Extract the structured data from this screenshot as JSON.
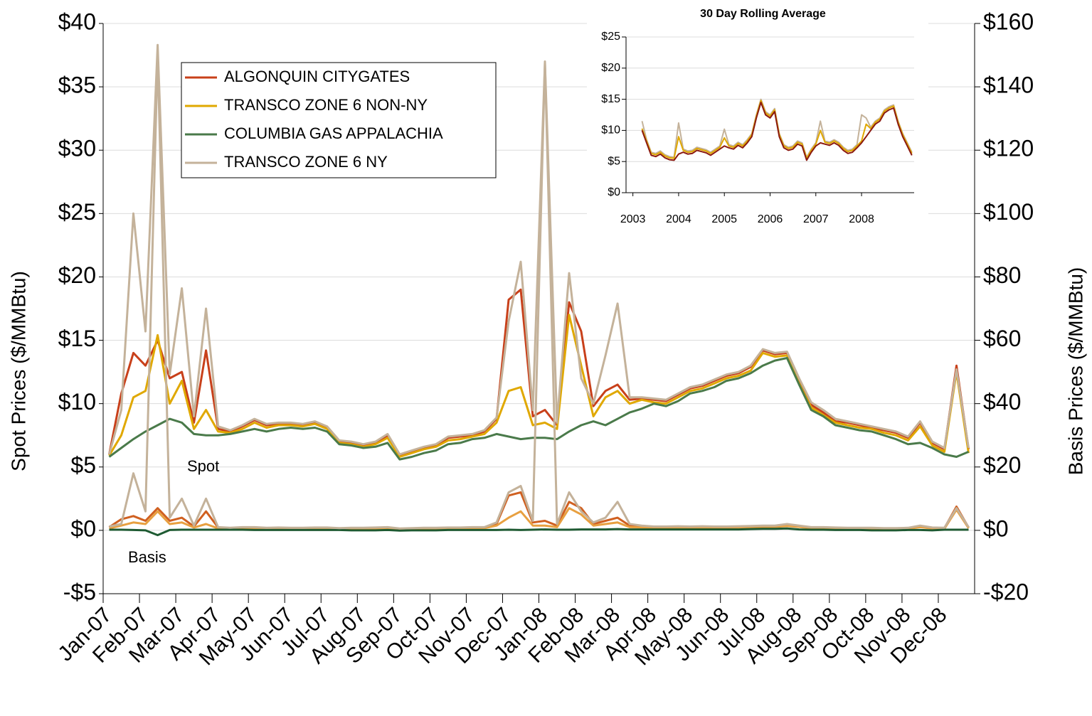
{
  "chart_data": [
    {
      "type": "line",
      "y_label": "Spot Prices ($/MMBtu)",
      "y2_label": "Basis Prices ($/MMBtu)",
      "annotations": [
        "Spot",
        "Basis"
      ],
      "grid": true,
      "legend": "upper-left",
      "categories": [
        "Jan-07",
        null,
        null,
        "Feb-07",
        null,
        null,
        "Mar-07",
        null,
        null,
        "Apr-07",
        null,
        null,
        "May-07",
        null,
        null,
        "Jun-07",
        null,
        null,
        "Jul-07",
        null,
        null,
        "Aug-07",
        null,
        null,
        "Sep-07",
        null,
        null,
        "Oct-07",
        null,
        null,
        "Nov-07",
        null,
        null,
        "Dec-07",
        null,
        null,
        "Jan-08",
        null,
        null,
        "Feb-08",
        null,
        null,
        "Mar-08",
        null,
        null,
        "Apr-08",
        null,
        null,
        "May-08",
        null,
        null,
        "Jun-08",
        null,
        null,
        "Jul-08",
        null,
        null,
        "Aug-08",
        null,
        null,
        "Sep-08",
        null,
        null,
        "Oct-08",
        null,
        null,
        "Nov-08",
        null,
        null,
        "Dec-08",
        null,
        null
      ],
      "ylim": [
        -5,
        40
      ],
      "yticks": [
        {
          "value": -5,
          "label": "-$5"
        },
        {
          "value": 0,
          "label": "$0"
        },
        {
          "value": 5,
          "label": "$5"
        },
        {
          "value": 10,
          "label": "$10"
        },
        {
          "value": 15,
          "label": "$15"
        },
        {
          "value": 20,
          "label": "$20"
        },
        {
          "value": 25,
          "label": "$25"
        },
        {
          "value": 30,
          "label": "$30"
        },
        {
          "value": 35,
          "label": "$35"
        },
        {
          "value": 40,
          "label": "$40"
        }
      ],
      "y2lim": [
        -20,
        160
      ],
      "y2ticks": [
        {
          "value": -20,
          "label": "-$20"
        },
        {
          "value": 0,
          "label": "$0"
        },
        {
          "value": 20,
          "label": "$20"
        },
        {
          "value": 40,
          "label": "$40"
        },
        {
          "value": 60,
          "label": "$60"
        },
        {
          "value": 80,
          "label": "$80"
        },
        {
          "value": 100,
          "label": "$100"
        },
        {
          "value": 120,
          "label": "$120"
        },
        {
          "value": 140,
          "label": "$140"
        },
        {
          "value": 160,
          "label": "$160"
        }
      ],
      "series": [
        {
          "name": "ALGONQUIN CITYGATES",
          "color": "#c8401a",
          "values": [
            6.0,
            10.8,
            14.0,
            13.0,
            15.0,
            12.0,
            12.5,
            8.5,
            14.2,
            8.0,
            7.8,
            8.2,
            8.7,
            8.3,
            8.4,
            8.4,
            8.3,
            8.5,
            8.1,
            7.0,
            6.9,
            6.7,
            6.9,
            7.5,
            5.9,
            6.2,
            6.5,
            6.7,
            7.3,
            7.4,
            7.5,
            7.8,
            8.8,
            18.2,
            19.0,
            9.0,
            9.5,
            8.3,
            18.0,
            15.7,
            9.8,
            11.0,
            11.5,
            10.3,
            10.4,
            10.3,
            10.2,
            10.7,
            11.2,
            11.4,
            11.8,
            12.2,
            12.4,
            12.9,
            14.2,
            13.9,
            14.0,
            11.8,
            9.9,
            9.3,
            8.6,
            8.5,
            8.3,
            8.1,
            7.9,
            7.7,
            7.3,
            8.5,
            6.9,
            6.4,
            13.0,
            6.4
          ]
        },
        {
          "name": "TRANSCO ZONE 6 NON-NY",
          "color": "#e0a800",
          "values": [
            5.9,
            7.5,
            10.5,
            11.0,
            15.4,
            10.0,
            11.8,
            8.0,
            9.5,
            7.8,
            7.7,
            8.0,
            8.5,
            8.1,
            8.3,
            8.3,
            8.2,
            8.4,
            8.0,
            6.9,
            6.8,
            6.6,
            6.8,
            7.3,
            5.8,
            6.1,
            6.4,
            6.6,
            7.1,
            7.2,
            7.4,
            7.6,
            8.5,
            11.0,
            11.3,
            8.3,
            8.5,
            8.0,
            17.0,
            13.0,
            9.0,
            10.5,
            11.0,
            10.0,
            10.3,
            10.1,
            10.0,
            10.5,
            11.0,
            11.2,
            11.6,
            12.0,
            12.2,
            12.6,
            14.0,
            13.7,
            13.8,
            11.6,
            9.7,
            9.1,
            8.5,
            8.3,
            8.1,
            8.0,
            7.7,
            7.5,
            7.1,
            8.2,
            6.7,
            6.2,
            12.5,
            6.1
          ]
        },
        {
          "name": "COLUMBIA GAS APPALACHIA",
          "color": "#4a7a4a",
          "values": [
            5.8,
            6.5,
            7.2,
            7.8,
            8.3,
            8.8,
            8.5,
            7.6,
            7.5,
            7.5,
            7.6,
            7.8,
            8.0,
            7.8,
            8.0,
            8.1,
            8.0,
            8.1,
            7.8,
            6.8,
            6.7,
            6.5,
            6.6,
            6.9,
            5.6,
            5.8,
            6.1,
            6.3,
            6.8,
            6.9,
            7.2,
            7.3,
            7.6,
            7.4,
            7.2,
            7.3,
            7.3,
            7.2,
            7.8,
            8.3,
            8.6,
            8.3,
            8.8,
            9.3,
            9.6,
            10.0,
            9.8,
            10.2,
            10.8,
            11.0,
            11.3,
            11.8,
            12.0,
            12.4,
            13.0,
            13.4,
            13.6,
            11.5,
            9.5,
            9.0,
            8.3,
            8.1,
            7.9,
            7.8,
            7.5,
            7.2,
            6.8,
            6.9,
            6.5,
            6.0,
            5.8,
            6.2
          ]
        },
        {
          "name": "TRANSCO ZONE 6 NY",
          "color": "#c4b29a",
          "values": [
            6.0,
            9.5,
            25.0,
            15.7,
            38.3,
            12.3,
            19.1,
            9.0,
            17.5,
            8.2,
            7.9,
            8.3,
            8.8,
            8.4,
            8.5,
            8.5,
            8.4,
            8.6,
            8.2,
            7.1,
            7.0,
            6.8,
            7.0,
            7.6,
            6.0,
            6.3,
            6.6,
            6.8,
            7.4,
            7.5,
            7.6,
            7.9,
            8.9,
            16.5,
            21.2,
            9.5,
            36.9,
            8.5,
            20.3,
            12.0,
            10.0,
            13.8,
            17.9,
            10.5,
            10.5,
            10.4,
            10.3,
            10.8,
            11.3,
            11.5,
            11.9,
            12.3,
            12.5,
            13.0,
            14.3,
            14.0,
            14.1,
            12.0,
            10.1,
            9.5,
            8.8,
            8.6,
            8.4,
            8.2,
            8.0,
            7.8,
            7.4,
            8.6,
            7.0,
            6.5,
            12.7,
            6.5
          ]
        },
        {
          "color": "#d06020",
          "axis": "y2",
          "values": [
            1.0,
            3.5,
            4.5,
            3.0,
            7.0,
            3.0,
            4.0,
            1.2,
            6.0,
            0.9,
            0.7,
            0.9,
            0.9,
            0.7,
            0.8,
            0.7,
            0.7,
            0.8,
            0.8,
            0.6,
            0.7,
            0.7,
            0.8,
            0.9,
            0.5,
            0.6,
            0.7,
            0.7,
            0.8,
            0.8,
            0.9,
            0.9,
            2.0,
            11.0,
            12.0,
            2.5,
            3.0,
            1.5,
            9.0,
            7.0,
            2.0,
            3.0,
            4.0,
            1.5,
            1.2,
            1.0,
            1.0,
            1.1,
            1.0,
            1.1,
            1.0,
            1.0,
            1.1,
            1.2,
            1.3,
            1.3,
            1.7,
            1.3,
            0.9,
            0.9,
            0.8,
            0.7,
            0.7,
            0.7,
            0.6,
            0.6,
            0.7,
            1.3,
            0.8,
            0.7,
            7.5,
            0.9
          ]
        },
        {
          "color": "#e8a040",
          "axis": "y2",
          "values": [
            0.6,
            1.5,
            2.5,
            2.0,
            6.0,
            2.0,
            2.5,
            0.9,
            2.0,
            0.6,
            0.5,
            0.6,
            0.6,
            0.5,
            0.6,
            0.5,
            0.5,
            0.6,
            0.6,
            0.4,
            0.5,
            0.5,
            0.6,
            0.7,
            0.4,
            0.4,
            0.5,
            0.5,
            0.6,
            0.6,
            0.7,
            0.7,
            1.5,
            4.0,
            6.0,
            1.5,
            1.5,
            1.0,
            7.0,
            5.0,
            1.5,
            2.0,
            2.5,
            1.0,
            0.9,
            0.8,
            0.8,
            0.9,
            0.8,
            0.9,
            0.8,
            0.8,
            0.9,
            1.0,
            1.1,
            1.1,
            1.4,
            1.1,
            0.7,
            0.7,
            0.6,
            0.5,
            0.5,
            0.5,
            0.4,
            0.4,
            0.5,
            1.0,
            0.6,
            0.5,
            6.5,
            0.7
          ]
        },
        {
          "color": "#1e5a32",
          "axis": "y2",
          "values": [
            0.2,
            0.2,
            0.1,
            0.0,
            -1.5,
            0.1,
            0.2,
            0.2,
            0.2,
            0.2,
            0.2,
            0.2,
            0.1,
            0.1,
            0.1,
            0.1,
            0.1,
            0.1,
            0.1,
            0.1,
            0.0,
            0.0,
            0.0,
            0.1,
            -0.1,
            0.0,
            0.0,
            0.0,
            0.1,
            0.1,
            0.1,
            0.1,
            0.1,
            0.2,
            0.1,
            0.2,
            0.3,
            0.2,
            0.2,
            0.3,
            0.3,
            0.3,
            0.4,
            0.3,
            0.3,
            0.3,
            0.3,
            0.3,
            0.3,
            0.3,
            0.3,
            0.3,
            0.3,
            0.4,
            0.5,
            0.5,
            0.6,
            0.3,
            0.2,
            0.2,
            0.1,
            0.1,
            0.1,
            0.0,
            0.0,
            0.0,
            0.1,
            0.1,
            0.0,
            0.2,
            0.2,
            0.2
          ]
        },
        {
          "color": "#c4b29a",
          "axis": "y2",
          "values": [
            1.2,
            2.0,
            18.0,
            6.0,
            150.0,
            4.0,
            10.0,
            1.5,
            10.0,
            1.0,
            0.8,
            1.0,
            1.0,
            0.8,
            0.9,
            0.8,
            0.8,
            0.9,
            0.9,
            0.7,
            0.8,
            0.8,
            0.9,
            1.0,
            0.6,
            0.7,
            0.8,
            0.8,
            0.9,
            0.9,
            1.0,
            1.0,
            2.5,
            12.0,
            14.0,
            3.0,
            148.0,
            2.0,
            12.0,
            6.0,
            2.5,
            4.0,
            9.0,
            2.0,
            1.5,
            1.2,
            1.2,
            1.3,
            1.2,
            1.3,
            1.2,
            1.2,
            1.3,
            1.4,
            1.5,
            1.5,
            2.0,
            1.5,
            1.0,
            1.0,
            0.9,
            0.8,
            0.8,
            0.8,
            0.7,
            0.7,
            0.8,
            1.5,
            0.9,
            0.8,
            7.0,
            1.0
          ]
        }
      ]
    },
    {
      "type": "line",
      "title": "30 Day Rolling Average",
      "grid": true,
      "x": [
        2003.2,
        2003.3,
        2003.4,
        2003.5,
        2003.6,
        2003.7,
        2003.8,
        2003.9,
        2004.0,
        2004.1,
        2004.2,
        2004.3,
        2004.4,
        2004.5,
        2004.6,
        2004.7,
        2004.8,
        2004.9,
        2005.0,
        2005.1,
        2005.2,
        2005.3,
        2005.4,
        2005.5,
        2005.6,
        2005.7,
        2005.8,
        2005.9,
        2006.0,
        2006.1,
        2006.2,
        2006.3,
        2006.4,
        2006.5,
        2006.6,
        2006.7,
        2006.8,
        2006.9,
        2007.0,
        2007.1,
        2007.2,
        2007.3,
        2007.4,
        2007.5,
        2007.6,
        2007.7,
        2007.8,
        2007.9,
        2008.0,
        2008.1,
        2008.2,
        2008.3,
        2008.4,
        2008.5,
        2008.6,
        2008.7,
        2008.8,
        2008.9,
        2009.0,
        2009.1
      ],
      "xlim": [
        2002.85,
        2009.15
      ],
      "xticks": [
        2003,
        2004,
        2005,
        2006,
        2007,
        2008
      ],
      "ylim": [
        0,
        25
      ],
      "yticks": [
        {
          "value": 0,
          "label": "$0"
        },
        {
          "value": 5,
          "label": "$5"
        },
        {
          "value": 10,
          "label": "$10"
        },
        {
          "value": 15,
          "label": "$15"
        },
        {
          "value": 20,
          "label": "$20"
        },
        {
          "value": 25,
          "label": "$25"
        }
      ],
      "series": [
        {
          "color": "#c4b29a",
          "values": [
            11.5,
            8.5,
            6.5,
            6.3,
            6.7,
            6.1,
            5.8,
            5.7,
            11.2,
            7.0,
            6.7,
            6.8,
            7.3,
            7.1,
            6.9,
            6.5,
            7.0,
            7.5,
            10.2,
            7.7,
            7.5,
            8.1,
            7.7,
            8.5,
            9.5,
            12.5,
            15.0,
            13.0,
            12.5,
            13.5,
            9.5,
            7.7,
            7.3,
            7.5,
            8.3,
            8.0,
            5.7,
            7.0,
            8.0,
            11.5,
            8.3,
            8.1,
            8.5,
            8.1,
            7.3,
            6.8,
            7.0,
            7.7,
            12.5,
            12.0,
            10.5,
            11.5,
            12.0,
            13.3,
            13.8,
            14.1,
            11.5,
            9.5,
            8.0,
            6.5
          ]
        },
        {
          "color": "#e0a800",
          "values": [
            10.3,
            8.3,
            6.3,
            6.1,
            6.5,
            5.9,
            5.6,
            5.5,
            9.0,
            6.8,
            6.5,
            6.6,
            7.1,
            6.9,
            6.7,
            6.3,
            6.8,
            7.3,
            8.8,
            7.5,
            7.3,
            7.9,
            7.5,
            8.3,
            9.3,
            12.3,
            14.8,
            12.8,
            12.3,
            13.3,
            9.3,
            7.5,
            7.1,
            7.3,
            8.1,
            7.8,
            5.5,
            6.8,
            7.8,
            10.0,
            8.1,
            7.9,
            8.3,
            7.9,
            7.1,
            6.6,
            6.8,
            7.5,
            8.3,
            11.0,
            10.3,
            11.3,
            11.8,
            13.1,
            13.6,
            13.9,
            11.3,
            9.3,
            7.8,
            6.3
          ]
        },
        {
          "color": "#8b1a10",
          "values": [
            10.0,
            8.0,
            6.0,
            5.8,
            6.2,
            5.6,
            5.3,
            5.2,
            6.2,
            6.5,
            6.2,
            6.3,
            6.8,
            6.6,
            6.4,
            6.0,
            6.5,
            7.0,
            7.5,
            7.2,
            7.0,
            7.6,
            7.2,
            8.0,
            9.0,
            12.0,
            14.5,
            12.5,
            12.0,
            13.0,
            9.0,
            7.2,
            6.8,
            7.0,
            7.8,
            7.5,
            5.2,
            6.5,
            7.5,
            8.0,
            7.8,
            7.6,
            8.0,
            7.6,
            6.8,
            6.3,
            6.5,
            7.2,
            8.0,
            9.0,
            10.0,
            11.0,
            11.5,
            12.8,
            13.3,
            13.6,
            11.0,
            9.0,
            7.5,
            6.0
          ]
        }
      ]
    }
  ]
}
